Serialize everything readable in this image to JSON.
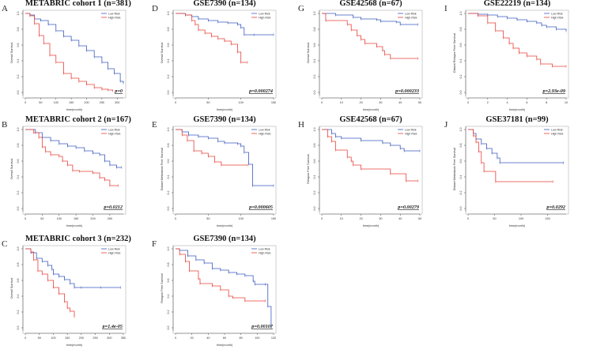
{
  "figure": {
    "legend_labels": [
      "Low Risk",
      "High Risk"
    ],
    "colors": {
      "low": "#3b5bbf",
      "high": "#e8413a",
      "axis": "#444444",
      "text": "#333333"
    }
  },
  "chart_data": [
    {
      "id": "A",
      "type": "line",
      "title": "METABRIC cohort 1 (n=381)",
      "xlabel": "time(month)",
      "ylabel": "Overall Survival",
      "xlim": [
        0,
        320
      ],
      "xticks": [
        0,
        50,
        100,
        150,
        200,
        250,
        300
      ],
      "ylim": [
        0,
        1
      ],
      "yticks": [
        "0.0",
        "0.2",
        "0.4",
        "0.6",
        "0.8",
        "1.0"
      ],
      "pvalue": "p=0",
      "legend": "top-right",
      "series": [
        {
          "name": "Low Risk",
          "x": [
            0,
            15,
            30,
            50,
            75,
            100,
            125,
            150,
            175,
            200,
            225,
            250,
            270,
            290,
            310,
            320
          ],
          "y": [
            1.0,
            0.98,
            0.93,
            0.91,
            0.86,
            0.78,
            0.71,
            0.66,
            0.59,
            0.53,
            0.45,
            0.38,
            0.3,
            0.24,
            0.14,
            0.12
          ]
        },
        {
          "name": "High Risk",
          "x": [
            0,
            15,
            30,
            45,
            60,
            80,
            100,
            125,
            150,
            175,
            200,
            225,
            250,
            270,
            285
          ],
          "y": [
            1.0,
            0.97,
            0.87,
            0.72,
            0.62,
            0.47,
            0.38,
            0.24,
            0.18,
            0.14,
            0.1,
            0.06,
            0.04,
            0.03,
            0.02
          ]
        }
      ]
    },
    {
      "id": "B",
      "type": "line",
      "title": "METABRIC cohort 2 (n=167)",
      "xlabel": "time(month)",
      "ylabel": "Overall Survival",
      "xlim": [
        0,
        290
      ],
      "xticks": [
        0,
        50,
        100,
        150,
        200,
        250
      ],
      "ylim": [
        0,
        1
      ],
      "yticks": [
        "0.0",
        "0.2",
        "0.4",
        "0.6",
        "0.8",
        "1.0"
      ],
      "pvalue": "p=0.0212",
      "legend": "top-right",
      "series": [
        {
          "name": "Low Risk",
          "x": [
            0,
            30,
            50,
            75,
            100,
            125,
            150,
            175,
            200,
            220,
            235,
            250,
            270,
            285
          ],
          "y": [
            1.0,
            0.96,
            0.9,
            0.86,
            0.82,
            0.79,
            0.77,
            0.73,
            0.7,
            0.68,
            0.6,
            0.55,
            0.52,
            0.52
          ]
        },
        {
          "name": "High Risk",
          "x": [
            0,
            25,
            40,
            50,
            60,
            75,
            100,
            110,
            125,
            140,
            160,
            200,
            220,
            235,
            250,
            275
          ],
          "y": [
            1.0,
            0.96,
            0.9,
            0.78,
            0.72,
            0.68,
            0.66,
            0.6,
            0.55,
            0.48,
            0.47,
            0.45,
            0.39,
            0.36,
            0.29,
            0.29
          ]
        }
      ]
    },
    {
      "id": "C",
      "type": "line",
      "title": "METABRIC cohort 3 (n=232)",
      "xlabel": "time(month)",
      "ylabel": "Overall Survival",
      "xlim": [
        0,
        350
      ],
      "xticks": [
        0,
        50,
        100,
        150,
        200,
        250,
        300,
        350
      ],
      "ylim": [
        0,
        1
      ],
      "yticks": [
        "0.0",
        "0.2",
        "0.4",
        "0.6",
        "0.8",
        "1.0"
      ],
      "pvalue": "p=1.4e-05",
      "legend": "top-right",
      "series": [
        {
          "name": "Low Risk",
          "x": [
            0,
            20,
            40,
            60,
            80,
            95,
            100,
            120,
            140,
            160,
            175,
            200,
            270,
            340
          ],
          "y": [
            1.0,
            0.95,
            0.88,
            0.84,
            0.79,
            0.74,
            0.68,
            0.65,
            0.61,
            0.56,
            0.51,
            0.51,
            0.51,
            0.51
          ]
        },
        {
          "name": "High Risk",
          "x": [
            0,
            20,
            30,
            45,
            60,
            80,
            100,
            120,
            140,
            150,
            160,
            175
          ],
          "y": [
            1.0,
            0.96,
            0.86,
            0.72,
            0.68,
            0.6,
            0.51,
            0.43,
            0.33,
            0.25,
            0.21,
            0.14
          ]
        }
      ]
    },
    {
      "id": "D",
      "type": "line",
      "title": "GSE7390 (n=134)",
      "xlabel": "time(month)",
      "ylabel": "Overall Survival",
      "xlim": [
        0,
        150
      ],
      "xticks": [
        0,
        50,
        100,
        150
      ],
      "ylim": [
        0,
        1
      ],
      "yticks": [
        "0.0",
        "0.2",
        "0.4",
        "0.6",
        "0.8",
        "1.0"
      ],
      "pvalue": "p=0.000274",
      "legend": "top-right",
      "series": [
        {
          "name": "Low Risk",
          "x": [
            0,
            15,
            25,
            35,
            50,
            65,
            80,
            95,
            100,
            105,
            120,
            150
          ],
          "y": [
            1.0,
            0.98,
            0.96,
            0.93,
            0.91,
            0.89,
            0.88,
            0.86,
            0.82,
            0.73,
            0.73,
            0.73
          ]
        },
        {
          "name": "High Risk",
          "x": [
            0,
            15,
            25,
            30,
            35,
            45,
            55,
            65,
            75,
            85,
            95,
            100,
            110
          ],
          "y": [
            1.0,
            0.98,
            0.91,
            0.86,
            0.79,
            0.75,
            0.71,
            0.68,
            0.65,
            0.61,
            0.51,
            0.38,
            0.38
          ]
        }
      ]
    },
    {
      "id": "E",
      "type": "line",
      "title": "GSE7390 (n=134)",
      "xlabel": "time(month)",
      "ylabel": "Distant Metastasis Free Survival",
      "xlim": [
        0,
        150
      ],
      "xticks": [
        0,
        50,
        100,
        150
      ],
      "ylim": [
        0,
        1
      ],
      "yticks": [
        "0.0",
        "0.2",
        "0.4",
        "0.6",
        "0.8",
        "1.0"
      ],
      "pvalue": "p=0.000605",
      "legend": "top-right",
      "series": [
        {
          "name": "Low Risk",
          "x": [
            0,
            10,
            20,
            35,
            50,
            65,
            75,
            95,
            100,
            105,
            112,
            118,
            150
          ],
          "y": [
            1.0,
            0.97,
            0.93,
            0.91,
            0.89,
            0.85,
            0.83,
            0.82,
            0.79,
            0.71,
            0.56,
            0.29,
            0.29
          ]
        },
        {
          "name": "High Risk",
          "x": [
            0,
            10,
            18,
            28,
            40,
            50,
            60,
            70,
            110
          ],
          "y": [
            1.0,
            0.93,
            0.86,
            0.73,
            0.7,
            0.66,
            0.59,
            0.55,
            0.55
          ]
        }
      ]
    },
    {
      "id": "F",
      "type": "line",
      "title": "GSE7390 (n=134)",
      "xlabel": "time(month)",
      "ylabel": "Relapse Free Survival",
      "xlim": [
        0,
        120
      ],
      "xticks": [
        0,
        20,
        40,
        60,
        80,
        100,
        120
      ],
      "ylim": [
        0,
        1
      ],
      "yticks": [
        "0.0",
        "0.2",
        "0.4",
        "0.6",
        "0.8",
        "1.0"
      ],
      "pvalue": "p=0.00107",
      "legend": "top-right",
      "series": [
        {
          "name": "Low Risk",
          "x": [
            0,
            5,
            15,
            25,
            35,
            45,
            55,
            65,
            75,
            85,
            95,
            97,
            110,
            113,
            117
          ],
          "y": [
            1.0,
            0.98,
            0.91,
            0.86,
            0.82,
            0.75,
            0.73,
            0.7,
            0.68,
            0.66,
            0.59,
            0.55,
            0.55,
            0.27,
            0.0
          ]
        },
        {
          "name": "High Risk",
          "x": [
            0,
            5,
            12,
            17,
            28,
            30,
            45,
            55,
            65,
            70,
            85,
            110
          ],
          "y": [
            1.0,
            0.93,
            0.84,
            0.72,
            0.62,
            0.56,
            0.53,
            0.48,
            0.4,
            0.38,
            0.34,
            0.34
          ]
        }
      ]
    },
    {
      "id": "G",
      "type": "line",
      "title": "GSE42568 (n=67)",
      "xlabel": "time(month)",
      "ylabel": "Overall Survival",
      "xlim": [
        0,
        50
      ],
      "xticks": [
        0,
        10,
        20,
        30,
        40,
        50
      ],
      "ylim": [
        0,
        1
      ],
      "yticks": [
        "0.0",
        "0.2",
        "0.4",
        "0.6",
        "0.8",
        "1.0"
      ],
      "pvalue": "p=0.000233",
      "legend": "top-right",
      "series": [
        {
          "name": "Low Risk",
          "x": [
            0,
            7,
            16,
            20,
            28,
            30,
            38,
            40,
            49
          ],
          "y": [
            1.0,
            0.98,
            0.95,
            0.93,
            0.92,
            0.9,
            0.89,
            0.86,
            0.86
          ]
        },
        {
          "name": "High Risk",
          "x": [
            0,
            2,
            13,
            15,
            18,
            20,
            22,
            28,
            31,
            32,
            35,
            49
          ],
          "y": [
            1.0,
            0.91,
            0.86,
            0.79,
            0.72,
            0.67,
            0.62,
            0.58,
            0.53,
            0.48,
            0.43,
            0.43
          ]
        }
      ]
    },
    {
      "id": "H",
      "type": "line",
      "title": "GSE42568 (n=67)",
      "xlabel": "time(month)",
      "ylabel": "Relapse Free Survival",
      "xlim": [
        0,
        50
      ],
      "xticks": [
        0,
        10,
        20,
        30,
        40,
        50
      ],
      "ylim": [
        0,
        1
      ],
      "yticks": [
        "0.0",
        "0.2",
        "0.4",
        "0.6",
        "0.8",
        "1.0"
      ],
      "pvalue": "p=0.00279",
      "legend": "top-right",
      "series": [
        {
          "name": "Low Risk",
          "x": [
            0,
            5,
            7,
            10,
            20,
            31,
            35,
            40,
            42,
            50
          ],
          "y": [
            1.0,
            0.95,
            0.91,
            0.89,
            0.86,
            0.83,
            0.8,
            0.76,
            0.73,
            0.73
          ]
        },
        {
          "name": "High Risk",
          "x": [
            0,
            3,
            5,
            7,
            13,
            15,
            16,
            20,
            35,
            43,
            49
          ],
          "y": [
            1.0,
            0.91,
            0.85,
            0.74,
            0.65,
            0.6,
            0.55,
            0.5,
            0.44,
            0.35,
            0.35
          ]
        }
      ]
    },
    {
      "id": "I",
      "type": "line",
      "title": "GSE22219 (n=134)",
      "xlabel": "time(month)",
      "ylabel": "Distant Relapse Free Survival",
      "xlim": [
        0,
        10
      ],
      "xticks": [
        0,
        2,
        4,
        6,
        8,
        10
      ],
      "ylim": [
        0,
        1
      ],
      "yticks": [
        "0.0",
        "0.2",
        "0.4",
        "0.6",
        "0.8",
        "1.0"
      ],
      "pvalue": "p=2.93e-09",
      "legend": "top-right",
      "series": [
        {
          "name": "Low Risk",
          "x": [
            0,
            1,
            2,
            3,
            4,
            5,
            6,
            7,
            7.5,
            8,
            9,
            10
          ],
          "y": [
            1.0,
            0.99,
            0.98,
            0.96,
            0.94,
            0.92,
            0.9,
            0.88,
            0.85,
            0.83,
            0.8,
            0.78
          ]
        },
        {
          "name": "High Risk",
          "x": [
            0,
            1,
            2,
            2.8,
            3.6,
            4.2,
            4.6,
            5.2,
            6,
            7,
            7.4,
            8.6,
            10
          ],
          "y": [
            1.0,
            0.97,
            0.88,
            0.78,
            0.69,
            0.62,
            0.56,
            0.5,
            0.46,
            0.42,
            0.36,
            0.33,
            0.33
          ]
        }
      ]
    },
    {
      "id": "J",
      "type": "line",
      "title": "GSE37181 (n=99)",
      "xlabel": "time(month)",
      "ylabel": "Distant Metastasis Free Survival",
      "xlim": [
        0,
        185
      ],
      "xticks": [
        0,
        50,
        100,
        150
      ],
      "ylim": [
        0,
        1
      ],
      "yticks": [
        "0.0",
        "0.2",
        "0.4",
        "0.6",
        "0.8",
        "1.0"
      ],
      "pvalue": "p=0.0292",
      "legend": "top-right",
      "series": [
        {
          "name": "Low Risk",
          "x": [
            0,
            10,
            15,
            25,
            35,
            45,
            55,
            60,
            180
          ],
          "y": [
            1.0,
            0.95,
            0.88,
            0.82,
            0.76,
            0.7,
            0.64,
            0.58,
            0.58
          ]
        },
        {
          "name": "High Risk",
          "x": [
            0,
            10,
            15,
            20,
            25,
            30,
            52,
            160
          ],
          "y": [
            1.0,
            0.92,
            0.84,
            0.72,
            0.58,
            0.47,
            0.34,
            0.34
          ]
        }
      ]
    }
  ]
}
